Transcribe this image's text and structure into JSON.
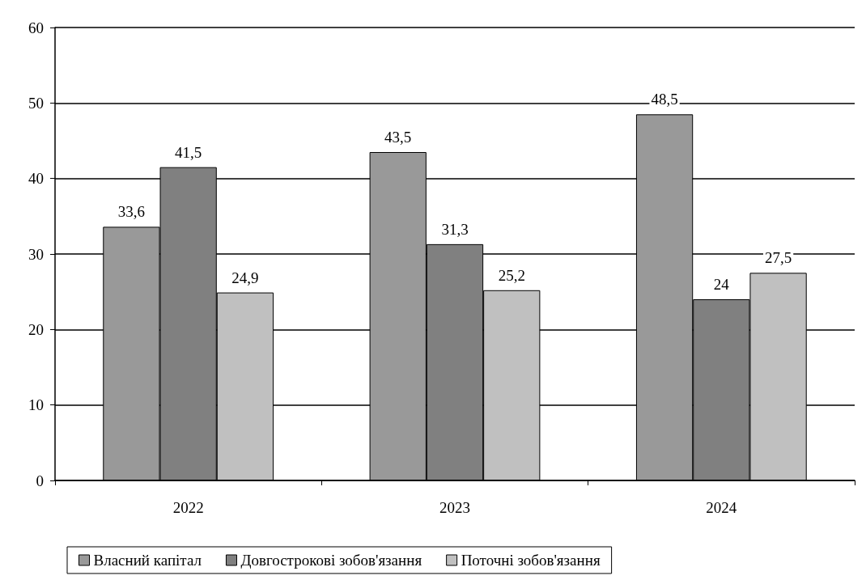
{
  "chart_data": {
    "type": "bar",
    "categories": [
      "2022",
      "2023",
      "2024"
    ],
    "series": [
      {
        "name": "Власний капітал",
        "color": "#999999",
        "values": [
          33.6,
          43.5,
          48.5
        ],
        "value_labels": [
          "33,6",
          "43,5",
          "48,5"
        ]
      },
      {
        "name": "Довгострокові зобов'язання",
        "color": "#808080",
        "values": [
          41.5,
          31.3,
          24
        ],
        "value_labels": [
          "41,5",
          "31,3",
          "24"
        ]
      },
      {
        "name": "Поточні зобов'язання",
        "color": "#c0c0c0",
        "values": [
          24.9,
          25.2,
          27.5
        ],
        "value_labels": [
          "24,9",
          "25,2",
          "27,5"
        ]
      }
    ],
    "ylim": [
      0,
      60
    ],
    "yticks": [
      0,
      10,
      20,
      30,
      40,
      50,
      60
    ],
    "grid": "y",
    "legend": "bottom"
  }
}
